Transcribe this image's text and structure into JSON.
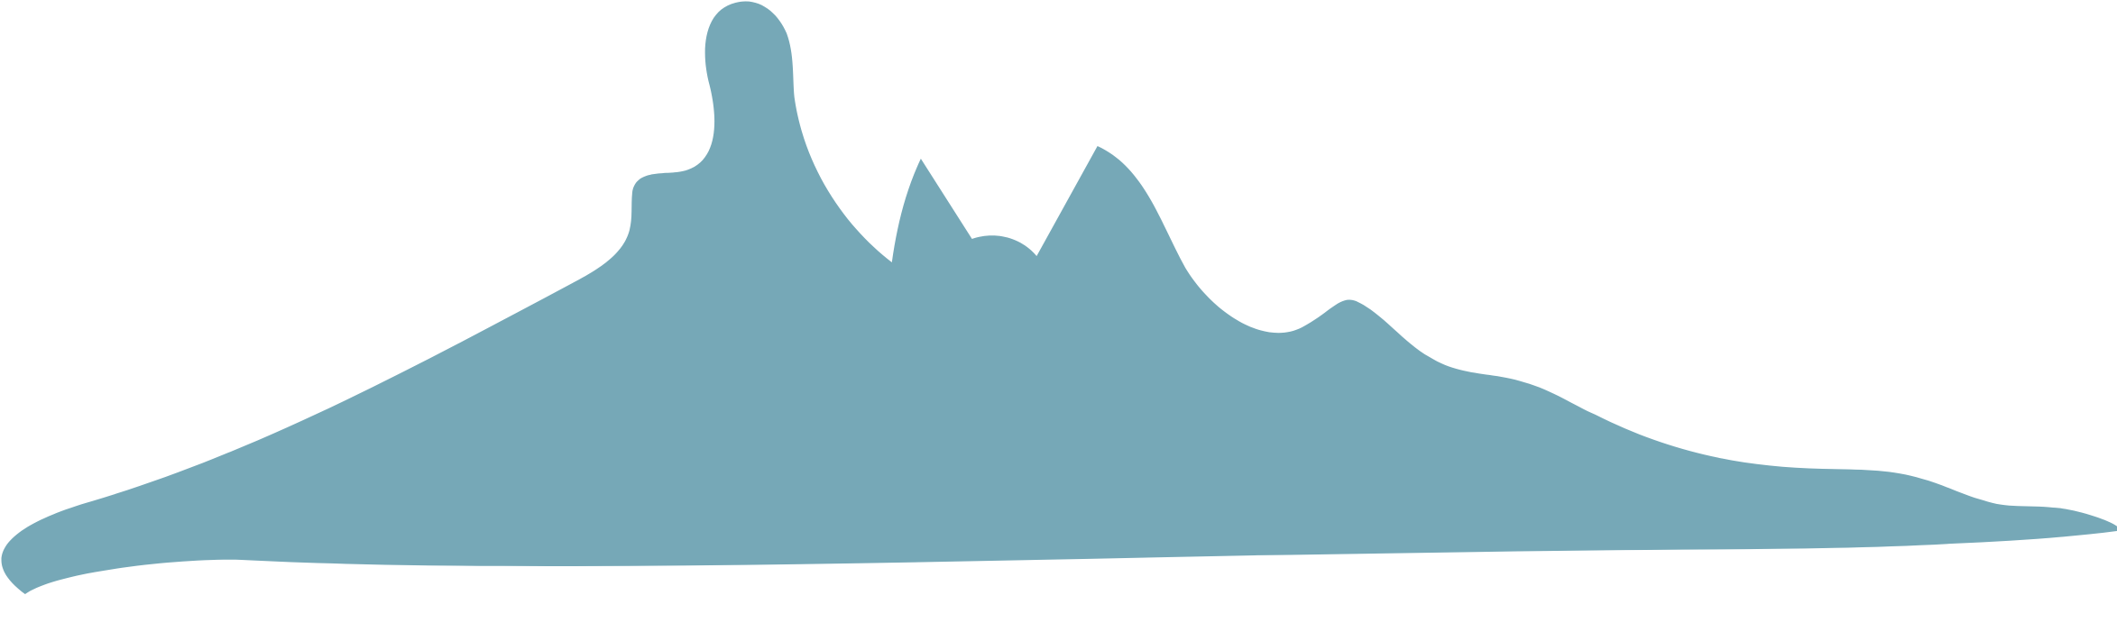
{
  "graphic": {
    "subject": "island-silhouette-shape",
    "fill_color": "#76a8b7",
    "background_color": "#ffffff"
  }
}
